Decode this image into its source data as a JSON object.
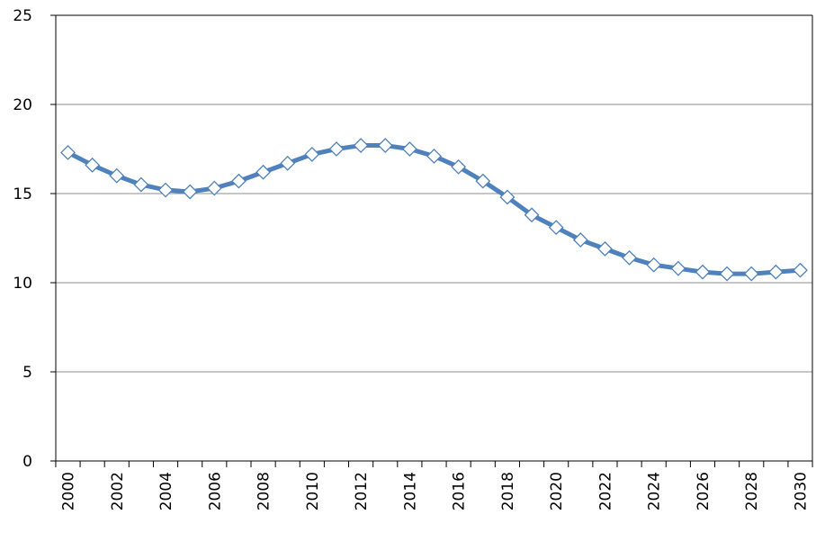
{
  "chart_data": {
    "type": "line",
    "title": "",
    "xlabel": "",
    "ylabel": "",
    "x": [
      2000,
      2001,
      2002,
      2003,
      2004,
      2005,
      2006,
      2007,
      2008,
      2009,
      2010,
      2011,
      2012,
      2013,
      2014,
      2015,
      2016,
      2017,
      2018,
      2019,
      2020,
      2021,
      2022,
      2023,
      2024,
      2025,
      2026,
      2027,
      2028,
      2029,
      2030
    ],
    "x_tick_labels": [
      "2000",
      "2002",
      "2004",
      "2006",
      "2008",
      "2010",
      "2012",
      "2014",
      "2016",
      "2018",
      "2020",
      "2022",
      "2024",
      "2026",
      "2028",
      "2030"
    ],
    "y_tick_labels": [
      "0",
      "5",
      "10",
      "15",
      "20",
      "25"
    ],
    "ylim": [
      0,
      25
    ],
    "grid": "horizontal",
    "legend": "none",
    "series": [
      {
        "values": [
          17.3,
          16.6,
          16.0,
          15.5,
          15.2,
          15.1,
          15.3,
          15.7,
          16.2,
          16.7,
          17.2,
          17.5,
          17.7,
          17.7,
          17.5,
          17.1,
          16.5,
          15.7,
          14.8,
          13.8,
          13.1,
          12.4,
          11.9,
          11.4,
          11.0,
          10.8,
          10.6,
          10.5,
          10.5,
          10.6,
          10.7
        ],
        "line_color": "#4F81BD",
        "marker": "diamond",
        "marker_fill": "#ffffff"
      }
    ]
  }
}
